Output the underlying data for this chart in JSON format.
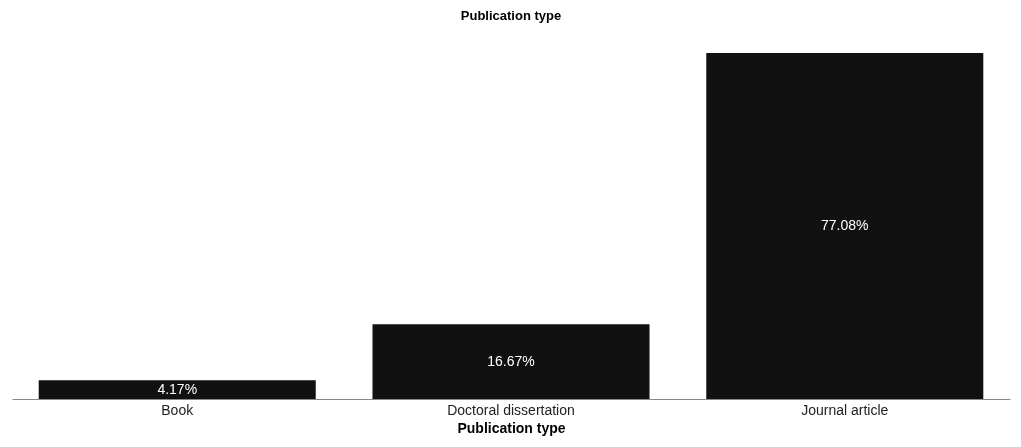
{
  "chart_data": {
    "type": "bar",
    "title": "Publication type",
    "xlabel": "Publication type",
    "categories": [
      "Book",
      "Doctoral dissertation",
      "Journal article"
    ],
    "values": [
      4.17,
      16.67,
      77.08
    ],
    "value_labels": [
      "4.17%",
      "16.67%",
      "77.08%"
    ],
    "color": "#111111",
    "grid": false
  }
}
